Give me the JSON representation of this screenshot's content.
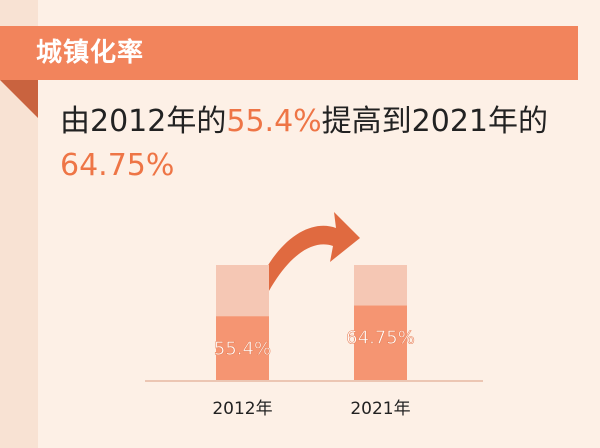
{
  "banner": {
    "title": "城镇化率"
  },
  "headline": {
    "part1": "由2012年的",
    "value1": "55.4%",
    "part2": "提高到2021年的",
    "value2": "64.75%"
  },
  "colors": {
    "accent": "#f2845c",
    "highlight_text": "#ee7546",
    "bar_fill": "#f59572",
    "bar_track": "#f5c7b4",
    "arrow": "#e06a40",
    "background": "#fdf0e6"
  },
  "chart_data": {
    "type": "bar",
    "categories": [
      "2012年",
      "2021年"
    ],
    "values": [
      55.4,
      64.75
    ],
    "data_labels": [
      "55.4%",
      "64.75%"
    ],
    "ylim": [
      0,
      100
    ],
    "title": "",
    "xlabel": "",
    "ylabel": "",
    "grid": false,
    "legend": "none"
  }
}
